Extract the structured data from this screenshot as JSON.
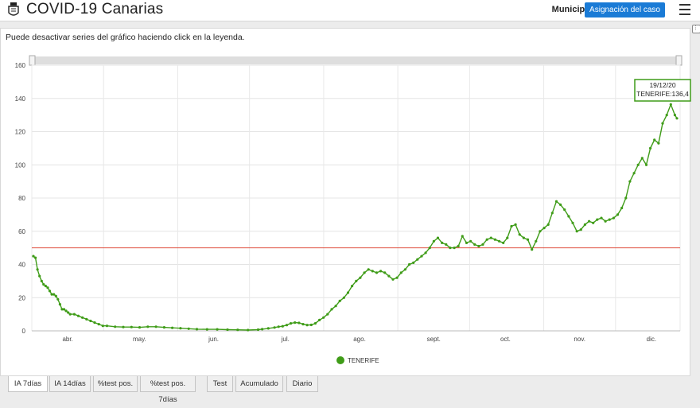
{
  "header": {
    "title": "COVID-19 Canarias",
    "municipio_label": "Municipio",
    "assign_button": "Asignación del caso",
    "icons": [
      "coat-of-arms-icon",
      "hamburger-menu-icon"
    ]
  },
  "chart_panel": {
    "hint": "Puede desactivar series del gráfico haciendo click en la leyenda.",
    "tooltip": {
      "date": "19/12/20",
      "text": "TENERIFE:136,4"
    },
    "legend": {
      "label": "TENERIFE",
      "color": "#3f9c18"
    }
  },
  "chart_data": {
    "type": "line",
    "y_ticks": [
      "0",
      "20",
      "40",
      "60",
      "80",
      "100",
      "120",
      "140",
      "160"
    ],
    "ylim": [
      0,
      160
    ],
    "x_ticks": [
      "abr.",
      "may.",
      "jun.",
      "jul.",
      "ago.",
      "sept.",
      "oct.",
      "nov.",
      "dic."
    ],
    "x_range_days": [
      0,
      271
    ],
    "x_tick_days": [
      15,
      45,
      76,
      106,
      137,
      168,
      198,
      229,
      259
    ],
    "threshold": {
      "value": 50,
      "color": "#e05040"
    },
    "grid": true,
    "series": [
      {
        "name": "TENERIFE",
        "color": "#3f9c18",
        "points": [
          [
            0,
            45
          ],
          [
            1,
            44
          ],
          [
            2,
            37
          ],
          [
            3,
            33
          ],
          [
            4,
            30
          ],
          [
            5,
            28
          ],
          [
            6,
            27
          ],
          [
            7,
            26
          ],
          [
            8,
            24
          ],
          [
            9,
            22
          ],
          [
            10,
            22
          ],
          [
            11,
            21
          ],
          [
            12,
            19
          ],
          [
            13,
            16
          ],
          [
            14,
            13
          ],
          [
            15,
            13
          ],
          [
            16,
            12
          ],
          [
            17,
            11
          ],
          [
            18,
            10
          ],
          [
            20,
            10
          ],
          [
            22,
            9
          ],
          [
            24,
            8
          ],
          [
            26,
            7
          ],
          [
            28,
            6
          ],
          [
            30,
            5
          ],
          [
            32,
            4
          ],
          [
            34,
            3
          ],
          [
            36,
            3
          ],
          [
            40,
            2.5
          ],
          [
            44,
            2.3
          ],
          [
            48,
            2.3
          ],
          [
            52,
            2.1
          ],
          [
            56,
            2.5
          ],
          [
            60,
            2.5
          ],
          [
            64,
            2.1
          ],
          [
            68,
            1.8
          ],
          [
            72,
            1.6
          ],
          [
            76,
            1.3
          ],
          [
            80,
            1.0
          ],
          [
            85,
            0.9
          ],
          [
            90,
            0.9
          ],
          [
            95,
            0.7
          ],
          [
            100,
            0.6
          ],
          [
            105,
            0.5
          ],
          [
            110,
            0.7
          ],
          [
            112,
            1.0
          ],
          [
            115,
            1.5
          ],
          [
            118,
            2.0
          ],
          [
            120,
            2.5
          ],
          [
            122,
            2.8
          ],
          [
            124,
            3.5
          ],
          [
            126,
            4.5
          ],
          [
            128,
            5.0
          ],
          [
            130,
            4.8
          ],
          [
            132,
            4.0
          ],
          [
            134,
            3.5
          ],
          [
            136,
            3.6
          ],
          [
            138,
            4.5
          ],
          [
            140,
            6.5
          ],
          [
            142,
            8
          ],
          [
            144,
            10
          ],
          [
            146,
            13
          ],
          [
            148,
            15
          ],
          [
            150,
            18
          ],
          [
            152,
            20
          ],
          [
            154,
            23
          ],
          [
            156,
            27
          ],
          [
            158,
            30
          ],
          [
            160,
            32
          ],
          [
            162,
            35
          ],
          [
            164,
            37
          ],
          [
            166,
            36
          ],
          [
            168,
            35
          ],
          [
            170,
            36
          ],
          [
            172,
            35
          ],
          [
            174,
            33
          ],
          [
            176,
            31
          ],
          [
            178,
            32
          ],
          [
            180,
            35
          ],
          [
            182,
            37
          ],
          [
            184,
            40
          ],
          [
            186,
            41
          ],
          [
            188,
            43
          ],
          [
            190,
            45
          ],
          [
            192,
            47
          ],
          [
            194,
            50
          ],
          [
            196,
            54
          ],
          [
            198,
            56
          ],
          [
            200,
            53
          ],
          [
            202,
            52
          ],
          [
            204,
            50
          ],
          [
            206,
            50
          ],
          [
            208,
            51
          ],
          [
            210,
            57
          ],
          [
            212,
            53
          ],
          [
            214,
            54
          ],
          [
            216,
            52
          ],
          [
            218,
            51
          ],
          [
            220,
            52
          ],
          [
            222,
            55
          ],
          [
            224,
            56
          ],
          [
            226,
            55
          ],
          [
            228,
            54
          ],
          [
            230,
            53
          ],
          [
            232,
            56
          ],
          [
            234,
            63
          ],
          [
            236,
            64
          ],
          [
            238,
            58
          ],
          [
            240,
            56
          ],
          [
            242,
            55
          ],
          [
            244,
            49
          ],
          [
            246,
            54
          ],
          [
            248,
            60
          ],
          [
            250,
            62
          ],
          [
            252,
            64
          ],
          [
            254,
            71
          ],
          [
            256,
            78
          ],
          [
            258,
            76
          ],
          [
            260,
            73
          ],
          [
            262,
            69
          ],
          [
            264,
            65
          ],
          [
            266,
            60
          ],
          [
            268,
            61
          ],
          [
            270,
            64
          ],
          [
            272,
            66
          ],
          [
            274,
            65
          ],
          [
            276,
            67
          ],
          [
            278,
            68
          ],
          [
            280,
            66
          ],
          [
            282,
            67
          ],
          [
            284,
            68
          ],
          [
            286,
            70
          ],
          [
            288,
            74
          ],
          [
            290,
            80
          ],
          [
            292,
            90
          ],
          [
            294,
            95
          ],
          [
            296,
            100
          ],
          [
            298,
            104
          ],
          [
            300,
            100
          ],
          [
            302,
            110
          ],
          [
            304,
            115
          ],
          [
            306,
            113
          ],
          [
            308,
            125
          ],
          [
            310,
            130
          ],
          [
            312,
            136.4
          ],
          [
            314,
            130
          ],
          [
            315,
            128
          ]
        ]
      }
    ]
  },
  "tabs": [
    {
      "label": "IA 7días",
      "active": true
    },
    {
      "label": "IA 14días",
      "active": false
    },
    {
      "label": "%test pos.",
      "active": false
    },
    {
      "label": "%test pos. 7días",
      "active": false
    },
    {
      "label": "Test",
      "active": false
    },
    {
      "label": "Acumulado",
      "active": false
    },
    {
      "label": "Diario",
      "active": false
    }
  ]
}
